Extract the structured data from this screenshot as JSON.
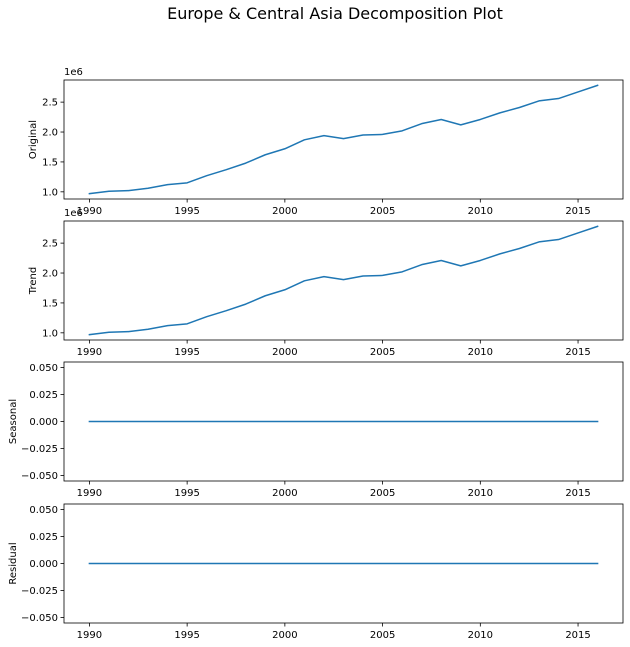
{
  "figure": {
    "title": "Europe & Central Asia Decomposition Plot"
  },
  "chart_data": [
    {
      "type": "line",
      "ylabel": "Original",
      "offset_text": "1e6",
      "xlim": [
        1988.7,
        2017.3
      ],
      "ylim": [
        0.88,
        2.87
      ],
      "xticks": [
        1990,
        1995,
        2000,
        2005,
        2010,
        2015
      ],
      "yticks": [
        1.0,
        1.5,
        2.0,
        2.5
      ],
      "ytick_labels": [
        "1.0",
        "1.5",
        "2.0",
        "2.5"
      ],
      "line_color": "#1f77b4",
      "x": [
        1990,
        1991,
        1992,
        1993,
        1994,
        1995,
        1996,
        1997,
        1998,
        1999,
        2000,
        2001,
        2002,
        2003,
        2004,
        2005,
        2006,
        2007,
        2008,
        2009,
        2010,
        2011,
        2012,
        2013,
        2014,
        2015,
        2016
      ],
      "y": [
        0.97,
        1.01,
        1.02,
        1.06,
        1.12,
        1.15,
        1.27,
        1.37,
        1.48,
        1.62,
        1.72,
        1.87,
        1.94,
        1.89,
        1.95,
        1.96,
        2.02,
        2.14,
        2.21,
        2.12,
        2.21,
        2.32,
        2.41,
        2.52,
        2.56,
        2.67,
        2.78
      ]
    },
    {
      "type": "line",
      "ylabel": "Trend",
      "offset_text": "1e6",
      "xlim": [
        1988.7,
        2017.3
      ],
      "ylim": [
        0.88,
        2.87
      ],
      "xticks": [
        1990,
        1995,
        2000,
        2005,
        2010,
        2015
      ],
      "yticks": [
        1.0,
        1.5,
        2.0,
        2.5
      ],
      "ytick_labels": [
        "1.0",
        "1.5",
        "2.0",
        "2.5"
      ],
      "line_color": "#1f77b4",
      "x": [
        1990,
        1991,
        1992,
        1993,
        1994,
        1995,
        1996,
        1997,
        1998,
        1999,
        2000,
        2001,
        2002,
        2003,
        2004,
        2005,
        2006,
        2007,
        2008,
        2009,
        2010,
        2011,
        2012,
        2013,
        2014,
        2015,
        2016
      ],
      "y": [
        0.97,
        1.01,
        1.02,
        1.06,
        1.12,
        1.15,
        1.27,
        1.37,
        1.48,
        1.62,
        1.72,
        1.87,
        1.94,
        1.89,
        1.95,
        1.96,
        2.02,
        2.14,
        2.21,
        2.12,
        2.21,
        2.32,
        2.41,
        2.52,
        2.56,
        2.67,
        2.78
      ]
    },
    {
      "type": "line",
      "ylabel": "Seasonal",
      "offset_text": "",
      "xlim": [
        1988.7,
        2017.3
      ],
      "ylim": [
        -0.055,
        0.055
      ],
      "xticks": [
        1990,
        1995,
        2000,
        2005,
        2010,
        2015
      ],
      "yticks": [
        -0.05,
        -0.025,
        0.0,
        0.025,
        0.05
      ],
      "ytick_labels": [
        "−0.050",
        "−0.025",
        "0.000",
        "0.025",
        "0.050"
      ],
      "line_color": "#1f77b4",
      "x": [
        1990,
        1991,
        1992,
        1993,
        1994,
        1995,
        1996,
        1997,
        1998,
        1999,
        2000,
        2001,
        2002,
        2003,
        2004,
        2005,
        2006,
        2007,
        2008,
        2009,
        2010,
        2011,
        2012,
        2013,
        2014,
        2015,
        2016
      ],
      "y": [
        0,
        0,
        0,
        0,
        0,
        0,
        0,
        0,
        0,
        0,
        0,
        0,
        0,
        0,
        0,
        0,
        0,
        0,
        0,
        0,
        0,
        0,
        0,
        0,
        0,
        0,
        0
      ]
    },
    {
      "type": "line",
      "ylabel": "Residual",
      "offset_text": "",
      "xlim": [
        1988.7,
        2017.3
      ],
      "ylim": [
        -0.055,
        0.055
      ],
      "xticks": [
        1990,
        1995,
        2000,
        2005,
        2010,
        2015
      ],
      "yticks": [
        -0.05,
        -0.025,
        0.0,
        0.025,
        0.05
      ],
      "ytick_labels": [
        "−0.050",
        "−0.025",
        "0.000",
        "0.025",
        "0.050"
      ],
      "line_color": "#1f77b4",
      "x": [
        1990,
        1991,
        1992,
        1993,
        1994,
        1995,
        1996,
        1997,
        1998,
        1999,
        2000,
        2001,
        2002,
        2003,
        2004,
        2005,
        2006,
        2007,
        2008,
        2009,
        2010,
        2011,
        2012,
        2013,
        2014,
        2015,
        2016
      ],
      "y": [
        0,
        0,
        0,
        0,
        0,
        0,
        0,
        0,
        0,
        0,
        0,
        0,
        0,
        0,
        0,
        0,
        0,
        0,
        0,
        0,
        0,
        0,
        0,
        0,
        0,
        0,
        0
      ]
    }
  ]
}
